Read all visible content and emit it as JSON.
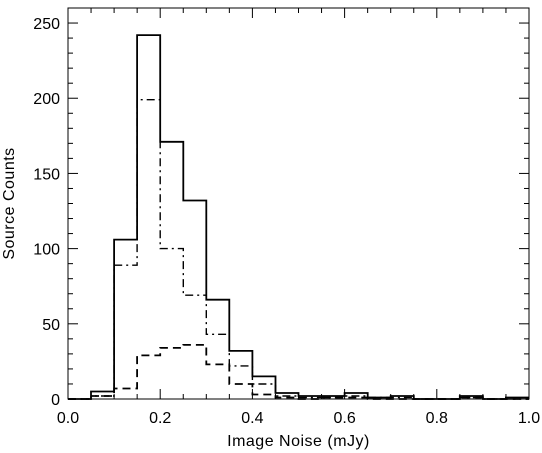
{
  "chart_data": {
    "type": "histogram",
    "title": "",
    "xlabel": "Image Noise (mJy)",
    "ylabel": "Source Counts",
    "xlim": [
      0.0,
      1.0
    ],
    "ylim": [
      0,
      260
    ],
    "grid": false,
    "legend": "none",
    "x_ticks": [
      0.0,
      0.2,
      0.4,
      0.6,
      0.8,
      1.0
    ],
    "x_tick_labels": [
      "0.0",
      "0.2",
      "0.4",
      "0.6",
      "0.8",
      "1.0"
    ],
    "y_ticks": [
      0,
      50,
      100,
      150,
      200,
      250
    ],
    "y_tick_labels": [
      "0",
      "50",
      "100",
      "150",
      "200",
      "250"
    ],
    "bin_edges": [
      0.0,
      0.05,
      0.1,
      0.15,
      0.2,
      0.25,
      0.3,
      0.35,
      0.4,
      0.45,
      0.5,
      0.55,
      0.6,
      0.65,
      0.7,
      0.75,
      0.8,
      0.85,
      0.9,
      0.95,
      1.0
    ],
    "series": [
      {
        "style": "solid",
        "values": [
          0,
          5,
          106,
          242,
          171,
          132,
          66,
          32,
          15,
          4,
          2,
          2,
          4,
          1,
          2,
          0,
          0,
          2,
          0,
          1
        ]
      },
      {
        "style": "dashdot",
        "values": [
          0,
          2,
          89,
          199,
          100,
          69,
          43,
          22,
          10,
          2,
          1,
          1,
          2,
          1,
          1,
          0,
          0,
          1,
          0,
          0
        ]
      },
      {
        "style": "dashed",
        "values": [
          0,
          2,
          7,
          29,
          34,
          36,
          23,
          10,
          3,
          1,
          0,
          1,
          1,
          0,
          0,
          0,
          0,
          1,
          0,
          0
        ]
      }
    ],
    "colors": {
      "axis": "#000000",
      "series": "#000000"
    }
  }
}
